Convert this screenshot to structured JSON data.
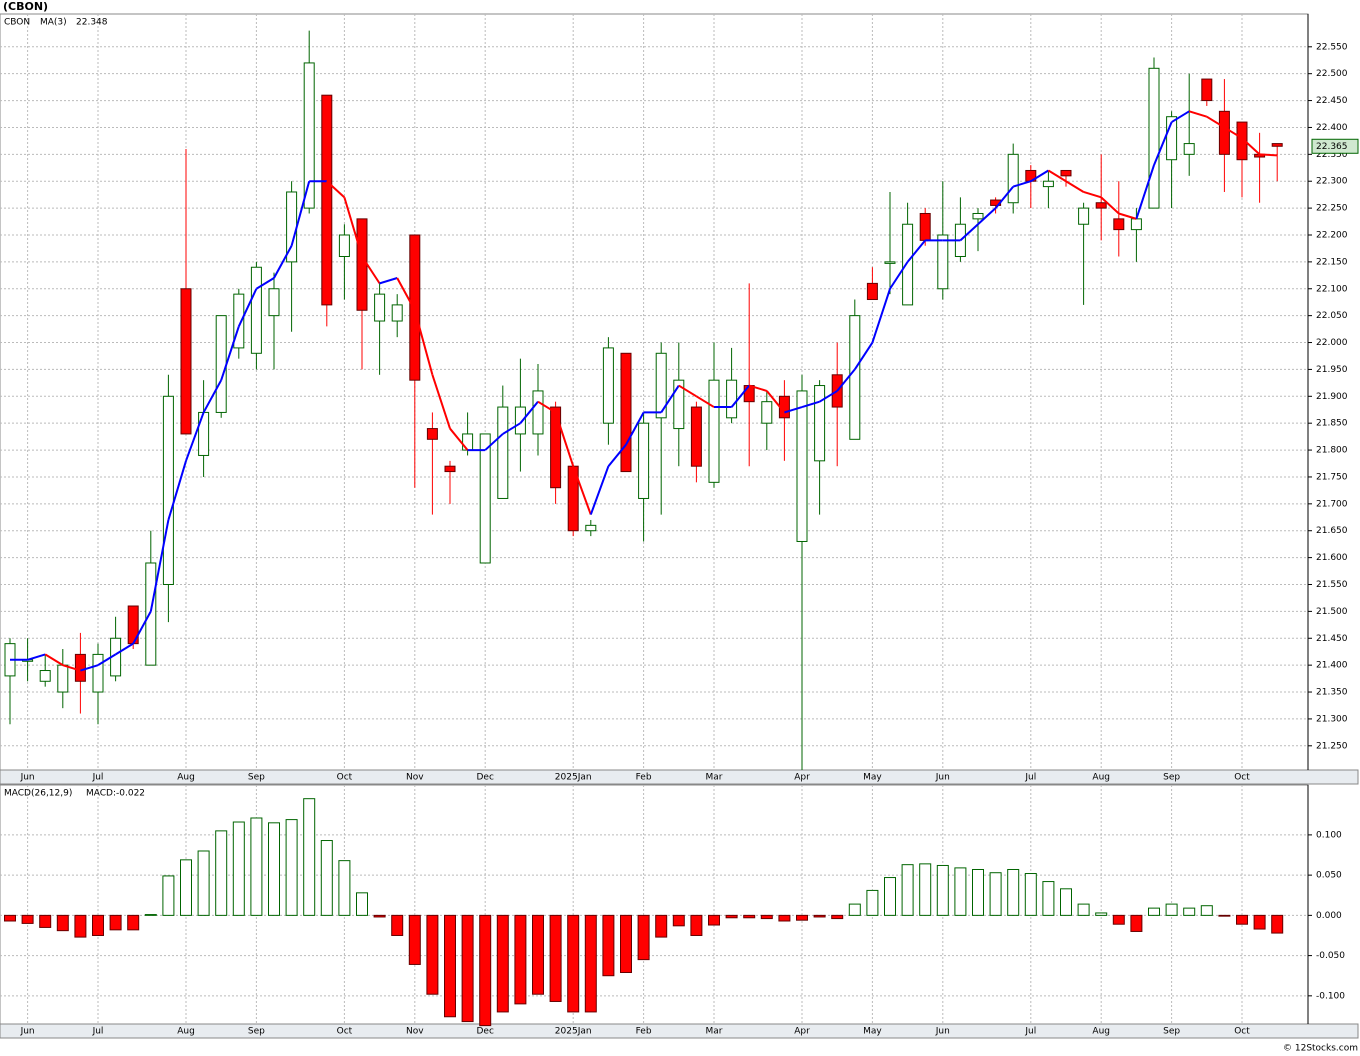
{
  "chart_data": [
    {
      "type": "candlestick",
      "title": "(CBON)",
      "name": "CBON",
      "up_color": "#006400",
      "down_color": "#ff0000",
      "categories": [
        null,
        "Jun",
        null,
        null,
        null,
        "Jul",
        null,
        null,
        null,
        null,
        "Aug",
        null,
        null,
        null,
        "Sep",
        null,
        null,
        null,
        null,
        "Oct",
        null,
        null,
        null,
        "Nov",
        null,
        null,
        null,
        "Dec",
        null,
        null,
        null,
        null,
        "2025Jan",
        null,
        null,
        null,
        "Feb",
        null,
        null,
        null,
        "Mar",
        null,
        null,
        null,
        null,
        "Apr",
        null,
        null,
        null,
        "May",
        null,
        null,
        null,
        "Jun",
        null,
        null,
        null,
        null,
        "Jul",
        null,
        null,
        null,
        "Aug",
        null,
        null,
        null,
        "Sep",
        null,
        null,
        null,
        "Oct",
        null,
        null
      ],
      "open": [
        21.38,
        21.41,
        21.37,
        21.35,
        21.42,
        21.35,
        21.38,
        21.51,
        21.4,
        21.55,
        22.1,
        21.79,
        21.87,
        21.99,
        21.98,
        22.05,
        22.15,
        22.25,
        22.46,
        22.16,
        22.23,
        22.04,
        22.04,
        22.2,
        21.84,
        21.77,
        21.8,
        21.59,
        21.71,
        21.83,
        21.83,
        21.88,
        21.77,
        21.65,
        21.85,
        21.98,
        21.71,
        21.86,
        21.84,
        21.88,
        21.74,
        21.86,
        21.92,
        21.85,
        21.9,
        21.63,
        21.78,
        21.94,
        21.82,
        22.11,
        22.15,
        22.07,
        22.24,
        22.1,
        22.16,
        22.23,
        22.265,
        22.26,
        22.32,
        22.29,
        22.32,
        22.22,
        22.26,
        22.23,
        22.21,
        22.25,
        22.34,
        22.35,
        22.49,
        22.43,
        22.41,
        22.35,
        22.37
      ],
      "high": [
        21.45,
        21.45,
        21.42,
        21.43,
        21.46,
        21.44,
        21.49,
        21.51,
        21.65,
        21.94,
        22.36,
        21.93,
        22.05,
        22.1,
        22.15,
        22.13,
        22.3,
        22.58,
        22.46,
        22.22,
        22.23,
        22.11,
        22.09,
        22.2,
        21.87,
        21.78,
        21.87,
        21.83,
        21.92,
        21.97,
        21.96,
        21.89,
        21.77,
        21.67,
        22.01,
        21.98,
        21.87,
        22.0,
        22.0,
        21.89,
        22.0,
        21.99,
        22.11,
        21.91,
        21.93,
        21.94,
        21.93,
        22.0,
        22.08,
        22.14,
        22.28,
        22.26,
        22.25,
        22.3,
        22.27,
        22.25,
        22.27,
        22.37,
        22.33,
        22.32,
        22.32,
        22.26,
        22.35,
        22.3,
        22.25,
        22.53,
        22.43,
        22.5,
        22.49,
        22.49,
        22.41,
        22.39,
        22.37
      ],
      "low": [
        21.29,
        21.37,
        21.36,
        21.32,
        21.31,
        21.29,
        21.37,
        21.43,
        21.4,
        21.48,
        21.83,
        21.75,
        21.86,
        21.97,
        21.95,
        21.95,
        22.02,
        22.24,
        22.03,
        22.08,
        21.95,
        21.94,
        22.01,
        21.73,
        21.68,
        21.7,
        21.79,
        21.59,
        21.71,
        21.76,
        21.79,
        21.7,
        21.64,
        21.64,
        21.81,
        21.76,
        21.63,
        21.68,
        21.77,
        21.74,
        21.73,
        21.85,
        21.77,
        21.8,
        21.78,
        21.2,
        21.68,
        21.77,
        21.82,
        22.08,
        22.09,
        22.07,
        22.18,
        22.08,
        22.15,
        22.17,
        22.24,
        22.24,
        22.25,
        22.25,
        22.29,
        22.07,
        22.19,
        22.16,
        22.15,
        22.25,
        22.25,
        22.31,
        22.44,
        22.28,
        22.27,
        22.26,
        22.3
      ],
      "close": [
        21.44,
        21.41,
        21.39,
        21.4,
        21.37,
        21.42,
        21.45,
        21.44,
        21.59,
        21.9,
        21.83,
        21.87,
        22.05,
        22.09,
        22.14,
        22.1,
        22.28,
        22.52,
        22.07,
        22.2,
        22.06,
        22.09,
        22.07,
        21.93,
        21.82,
        21.76,
        21.83,
        21.83,
        21.88,
        21.88,
        21.91,
        21.73,
        21.65,
        21.66,
        21.99,
        21.76,
        21.85,
        21.98,
        21.93,
        21.77,
        21.93,
        21.93,
        21.89,
        21.89,
        21.86,
        21.91,
        21.92,
        21.88,
        22.05,
        22.08,
        22.15,
        22.22,
        22.19,
        22.2,
        22.22,
        22.24,
        22.255,
        22.35,
        22.3,
        22.3,
        22.31,
        22.25,
        22.25,
        22.21,
        22.23,
        22.51,
        22.42,
        22.37,
        22.45,
        22.35,
        22.34,
        22.345,
        22.365
      ],
      "price_tag": "22.365",
      "series": [
        {
          "name": "MA(3)",
          "value_label": "22.348",
          "rising_color": "#0000ff",
          "falling_color": "#ff0000",
          "values": [
            21.41,
            21.41,
            21.42,
            21.4,
            21.39,
            21.4,
            21.42,
            21.44,
            21.5,
            21.67,
            21.78,
            21.87,
            21.93,
            22.03,
            22.1,
            22.12,
            22.18,
            22.3,
            22.3,
            22.27,
            22.16,
            22.11,
            22.12,
            22.06,
            21.94,
            21.84,
            21.8,
            21.8,
            21.83,
            21.85,
            21.89,
            21.87,
            21.77,
            21.68,
            21.77,
            21.81,
            21.87,
            21.87,
            21.92,
            21.9,
            21.88,
            21.88,
            21.92,
            21.91,
            21.87,
            21.88,
            21.89,
            21.91,
            21.95,
            22.0,
            22.1,
            22.15,
            22.19,
            22.19,
            22.19,
            22.22,
            22.25,
            22.29,
            22.3,
            22.32,
            22.3,
            22.28,
            22.27,
            22.24,
            22.23,
            22.33,
            22.41,
            22.43,
            22.42,
            22.4,
            22.38,
            22.35,
            22.348
          ]
        }
      ],
      "ylim": [
        21.205,
        22.611
      ],
      "yticks": [
        {
          "value": 22.55,
          "label": "22.550"
        },
        {
          "value": 22.5,
          "label": "22.500"
        },
        {
          "value": 22.45,
          "label": "22.450"
        },
        {
          "value": 22.4,
          "label": "22.400"
        },
        {
          "value": 22.35,
          "label": "22.350"
        },
        {
          "value": 22.3,
          "label": "22.300"
        },
        {
          "value": 22.25,
          "label": "22.250"
        },
        {
          "value": 22.2,
          "label": "22.200"
        },
        {
          "value": 22.15,
          "label": "22.150"
        },
        {
          "value": 22.1,
          "label": "22.100"
        },
        {
          "value": 22.05,
          "label": "22.050"
        },
        {
          "value": 22.0,
          "label": "22.000"
        },
        {
          "value": 21.95,
          "label": "21.950"
        },
        {
          "value": 21.9,
          "label": "21.900"
        },
        {
          "value": 21.85,
          "label": "21.850"
        },
        {
          "value": 21.8,
          "label": "21.800"
        },
        {
          "value": 21.75,
          "label": "21.750"
        },
        {
          "value": 21.7,
          "label": "21.700"
        },
        {
          "value": 21.65,
          "label": "21.650"
        },
        {
          "value": 21.6,
          "label": "21.600"
        },
        {
          "value": 21.55,
          "label": "21.550"
        },
        {
          "value": 21.5,
          "label": "21.500"
        },
        {
          "value": 21.45,
          "label": "21.450"
        },
        {
          "value": 21.4,
          "label": "21.400"
        },
        {
          "value": 21.35,
          "label": "21.350"
        },
        {
          "value": 21.3,
          "label": "21.300"
        },
        {
          "value": 21.25,
          "label": "21.250"
        }
      ],
      "grid": true
    },
    {
      "type": "bar",
      "name": "MACD(26,12,9)",
      "value_label": "MACD:-0.022",
      "positive_color": "#006400",
      "negative_color": "#ff0000",
      "categories": [
        null,
        "Jun",
        null,
        null,
        null,
        "Jul",
        null,
        null,
        null,
        null,
        "Aug",
        null,
        null,
        null,
        "Sep",
        null,
        null,
        null,
        null,
        "Oct",
        null,
        null,
        null,
        "Nov",
        null,
        null,
        null,
        "Dec",
        null,
        null,
        null,
        null,
        "2025Jan",
        null,
        null,
        null,
        "Feb",
        null,
        null,
        null,
        "Mar",
        null,
        null,
        null,
        null,
        "Apr",
        null,
        null,
        null,
        "May",
        null,
        null,
        null,
        "Jun",
        null,
        null,
        null,
        null,
        "Jul",
        null,
        null,
        null,
        "Aug",
        null,
        null,
        null,
        "Sep",
        null,
        null,
        null,
        "Oct",
        null,
        null
      ],
      "values": [
        -0.007,
        -0.01,
        -0.015,
        -0.019,
        -0.027,
        -0.025,
        -0.018,
        -0.018,
        0.001,
        0.049,
        0.069,
        0.08,
        0.105,
        0.116,
        0.121,
        0.115,
        0.119,
        0.145,
        0.093,
        0.068,
        0.028,
        -0.002,
        -0.025,
        -0.061,
        -0.098,
        -0.126,
        -0.132,
        -0.137,
        -0.12,
        -0.11,
        -0.098,
        -0.107,
        -0.12,
        -0.12,
        -0.075,
        -0.071,
        -0.055,
        -0.027,
        -0.013,
        -0.025,
        -0.012,
        -0.003,
        -0.003,
        -0.004,
        -0.007,
        -0.006,
        -0.002,
        -0.004,
        0.014,
        0.031,
        0.047,
        0.063,
        0.064,
        0.062,
        0.059,
        0.057,
        0.053,
        0.057,
        0.052,
        0.042,
        0.033,
        0.014,
        0.003,
        -0.011,
        -0.02,
        0.009,
        0.014,
        0.009,
        0.012,
        -0.001,
        -0.011,
        -0.017,
        -0.022
      ],
      "ylim": [
        -0.135,
        0.162
      ],
      "yticks": [
        {
          "value": 0.1,
          "label": "0.100"
        },
        {
          "value": 0.05,
          "label": "0.050"
        },
        {
          "value": 0,
          "label": "0.000"
        },
        {
          "value": -0.05,
          "label": "-0.050"
        },
        {
          "value": -0.1,
          "label": "-0.100"
        }
      ],
      "grid": true
    }
  ],
  "footer": "© 12Stocks.com"
}
